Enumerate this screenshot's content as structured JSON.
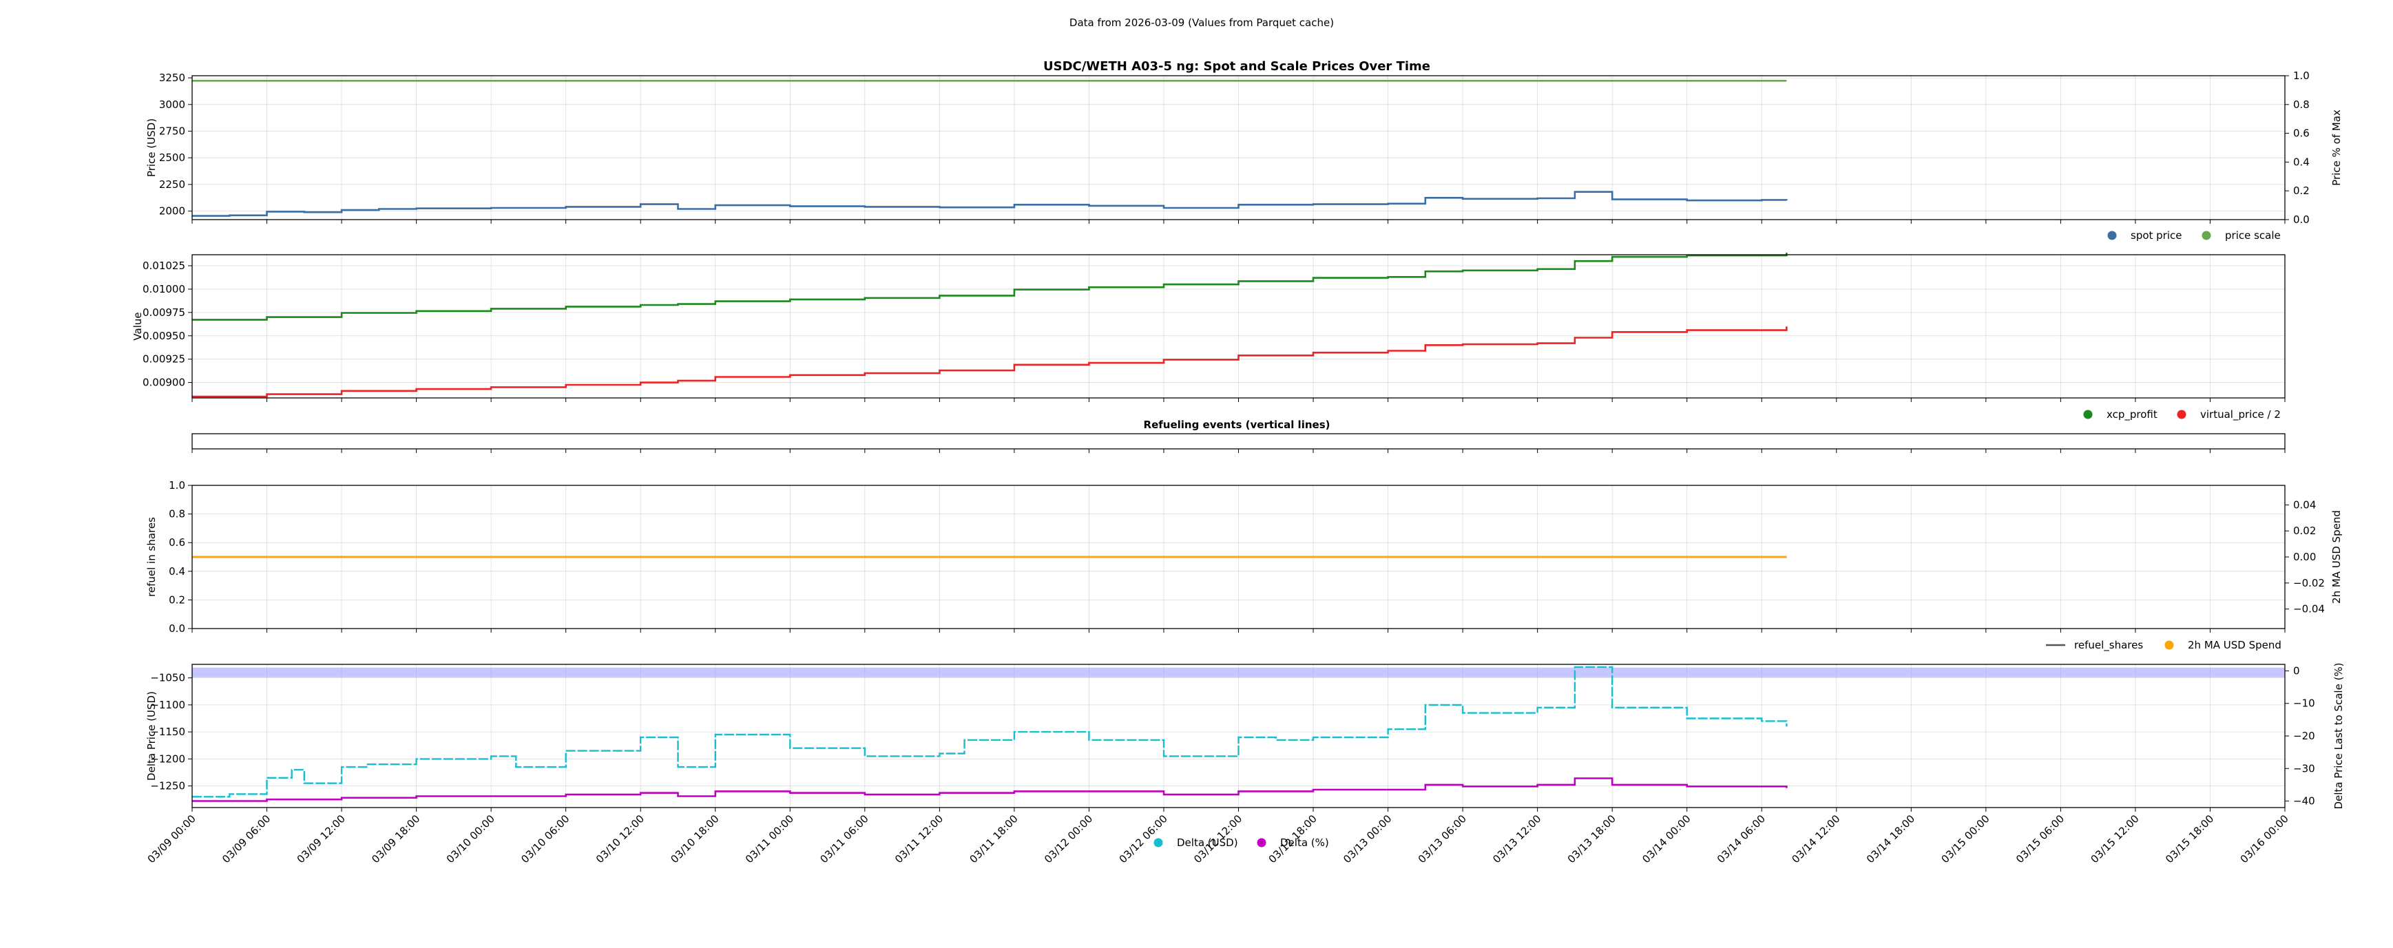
{
  "supertitle": "Data from 2026-03-09 (Values from Parquet cache)",
  "x_axis": {
    "type": "datetime",
    "range": [
      "2026-03-09 00:00",
      "2026-03-16 00:00"
    ],
    "tick_labels": [
      "03/09 00:00",
      "03/09 06:00",
      "03/09 12:00",
      "03/09 18:00",
      "03/10 00:00",
      "03/10 06:00",
      "03/10 12:00",
      "03/10 18:00",
      "03/11 00:00",
      "03/11 06:00",
      "03/11 12:00",
      "03/11 18:00",
      "03/12 00:00",
      "03/12 06:00",
      "03/12 12:00",
      "03/12 18:00",
      "03/13 00:00",
      "03/13 06:00",
      "03/13 12:00",
      "03/13 18:00",
      "03/14 00:00",
      "03/14 06:00",
      "03/14 12:00",
      "03/14 18:00",
      "03/15 00:00",
      "03/15 06:00",
      "03/15 12:00",
      "03/15 18:00",
      "03/16 00:00"
    ],
    "data_end": "2026-03-14 08:00"
  },
  "colors": {
    "spot_price": "#3a6ea5",
    "price_scale": "#6aa84f",
    "xcp_profit": "#1a8a1a",
    "virtual_price": "#ee2222",
    "refuel_shares": "#555555",
    "ma_spend": "#ffa500",
    "delta_usd": "#17becf",
    "delta_pct": "#bf00bf",
    "band": "#9999ff"
  },
  "chart_data": [
    {
      "type": "line",
      "title": "USDC/WETH A03-5 ng: Spot and Scale Prices Over Time",
      "ylabel": "Price (USD)",
      "ylim": [
        1920,
        3270
      ],
      "yticks": [
        "2000",
        "2250",
        "2500",
        "2750",
        "3000",
        "3250"
      ],
      "y2label": "Price % of Max",
      "y2lim": [
        0,
        1
      ],
      "y2ticks": [
        "0.0",
        "0.2",
        "0.4",
        "0.6",
        "0.8",
        "1.0"
      ],
      "legend": [
        "spot price",
        "price scale"
      ],
      "legend_placement": "below-right",
      "grid": true,
      "series": [
        {
          "name": "spot price",
          "points": [
            [
              "03/09 00:00",
              1955
            ],
            [
              "03/09 03:00",
              1960
            ],
            [
              "03/09 06:00",
              1995
            ],
            [
              "03/09 09:00",
              1990
            ],
            [
              "03/09 12:00",
              2010
            ],
            [
              "03/09 15:00",
              2020
            ],
            [
              "03/09 18:00",
              2025
            ],
            [
              "03/10 00:00",
              2030
            ],
            [
              "03/10 06:00",
              2040
            ],
            [
              "03/10 12:00",
              2065
            ],
            [
              "03/10 15:00",
              2020
            ],
            [
              "03/10 18:00",
              2055
            ],
            [
              "03/11 00:00",
              2045
            ],
            [
              "03/11 06:00",
              2040
            ],
            [
              "03/11 12:00",
              2035
            ],
            [
              "03/11 18:00",
              2060
            ],
            [
              "03/12 00:00",
              2050
            ],
            [
              "03/12 06:00",
              2030
            ],
            [
              "03/12 12:00",
              2060
            ],
            [
              "03/12 18:00",
              2065
            ],
            [
              "03/13 00:00",
              2070
            ],
            [
              "03/13 03:00",
              2125
            ],
            [
              "03/13 06:00",
              2115
            ],
            [
              "03/13 12:00",
              2120
            ],
            [
              "03/13 15:00",
              2180
            ],
            [
              "03/13 18:00",
              2110
            ],
            [
              "03/14 00:00",
              2100
            ],
            [
              "03/14 06:00",
              2105
            ],
            [
              "03/14 08:00",
              2100
            ]
          ]
        },
        {
          "name": "price scale",
          "axis": "right",
          "points": [
            [
              "03/09 00:00",
              0.965
            ],
            [
              "03/14 08:00",
              0.965
            ]
          ]
        }
      ]
    },
    {
      "type": "line",
      "title": "",
      "ylabel": "Value",
      "ylim": [
        0.008835,
        0.010368
      ],
      "yticks": [
        "0.00900",
        "0.00925",
        "0.00950",
        "0.00975",
        "0.01000",
        "0.01025"
      ],
      "legend": [
        "xcp_profit",
        "virtual_price / 2"
      ],
      "legend_placement": "below-right",
      "grid": true,
      "series": [
        {
          "name": "xcp_profit",
          "points": [
            [
              "03/09 00:00",
              0.009672
            ],
            [
              "03/09 06:00",
              0.0097
            ],
            [
              "03/09 12:00",
              0.009745
            ],
            [
              "03/09 18:00",
              0.009765
            ],
            [
              "03/10 00:00",
              0.00979
            ],
            [
              "03/10 06:00",
              0.009812
            ],
            [
              "03/10 12:00",
              0.00983
            ],
            [
              "03/10 15:00",
              0.00984
            ],
            [
              "03/10 18:00",
              0.00987
            ],
            [
              "03/11 00:00",
              0.00989
            ],
            [
              "03/11 06:00",
              0.009905
            ],
            [
              "03/11 12:00",
              0.00993
            ],
            [
              "03/11 18:00",
              0.009995
            ],
            [
              "03/12 00:00",
              0.01002
            ],
            [
              "03/12 06:00",
              0.01005
            ],
            [
              "03/12 12:00",
              0.010085
            ],
            [
              "03/12 18:00",
              0.01012
            ],
            [
              "03/13 00:00",
              0.01013
            ],
            [
              "03/13 03:00",
              0.01019
            ],
            [
              "03/13 06:00",
              0.0102
            ],
            [
              "03/13 12:00",
              0.010215
            ],
            [
              "03/13 15:00",
              0.0103
            ],
            [
              "03/13 18:00",
              0.010345
            ],
            [
              "03/14 00:00",
              0.01036
            ],
            [
              "03/14 08:00",
              0.01039
            ]
          ]
        },
        {
          "name": "virtual_price / 2",
          "points": [
            [
              "03/09 00:00",
              0.00885
            ],
            [
              "03/09 06:00",
              0.008875
            ],
            [
              "03/09 12:00",
              0.00891
            ],
            [
              "03/09 18:00",
              0.00893
            ],
            [
              "03/10 00:00",
              0.00895
            ],
            [
              "03/10 06:00",
              0.008975
            ],
            [
              "03/10 12:00",
              0.009
            ],
            [
              "03/10 15:00",
              0.00902
            ],
            [
              "03/10 18:00",
              0.00906
            ],
            [
              "03/11 00:00",
              0.00908
            ],
            [
              "03/11 06:00",
              0.0091
            ],
            [
              "03/11 12:00",
              0.00913
            ],
            [
              "03/11 18:00",
              0.00919
            ],
            [
              "03/12 00:00",
              0.00921
            ],
            [
              "03/12 06:00",
              0.009245
            ],
            [
              "03/12 12:00",
              0.00929
            ],
            [
              "03/12 18:00",
              0.00932
            ],
            [
              "03/13 00:00",
              0.00934
            ],
            [
              "03/13 03:00",
              0.0094
            ],
            [
              "03/13 06:00",
              0.00941
            ],
            [
              "03/13 12:00",
              0.00942
            ],
            [
              "03/13 15:00",
              0.00948
            ],
            [
              "03/13 18:00",
              0.00954
            ],
            [
              "03/14 00:00",
              0.00956
            ],
            [
              "03/14 08:00",
              0.0096
            ]
          ]
        }
      ]
    },
    {
      "type": "line",
      "title": "Refueling events (vertical lines)",
      "series": []
    },
    {
      "type": "line",
      "title": "",
      "ylabel": "refuel in shares",
      "ylim": [
        0,
        1
      ],
      "yticks": [
        "0.0",
        "0.2",
        "0.4",
        "0.6",
        "0.8",
        "1.0"
      ],
      "y2label": "2h MA USD Spend",
      "y2lim": [
        -0.055,
        0.055
      ],
      "y2ticks": [
        "−0.04",
        "−0.02",
        "0.00",
        "0.02",
        "0.04"
      ],
      "legend": [
        "refuel_shares",
        "2h MA USD Spend"
      ],
      "legend_placement": "below-right",
      "grid": true,
      "series": [
        {
          "name": "refuel_shares",
          "points": [
            [
              "03/09 00:00",
              0.5
            ],
            [
              "03/14 08:00",
              0.5
            ]
          ]
        },
        {
          "name": "2h MA USD Spend",
          "axis": "right",
          "points": [
            [
              "03/09 00:00",
              0.0
            ],
            [
              "03/14 08:00",
              0.0
            ]
          ]
        }
      ]
    },
    {
      "type": "line",
      "title": "",
      "ylabel": "Delta Price (USD)",
      "ylim": [
        -1290,
        -1025
      ],
      "yticks": [
        "−1250",
        "−1200",
        "−1150",
        "−1100",
        "−1050"
      ],
      "y2label": "Delta Price Last to Scale (%)",
      "y2lim": [
        -42,
        2
      ],
      "y2ticks": [
        "−40",
        "−30",
        "−20",
        "−10",
        "0"
      ],
      "legend": [
        "Delta (USD)",
        "Delta (%)"
      ],
      "legend_placement": "bottom-center",
      "grid": true,
      "band": {
        "axis": "right",
        "from": -2,
        "to": 1
      },
      "series": [
        {
          "name": "Delta (USD)",
          "points": [
            [
              "03/09 00:00",
              -1270
            ],
            [
              "03/09 03:00",
              -1265
            ],
            [
              "03/09 06:00",
              -1235
            ],
            [
              "03/09 08:00",
              -1220
            ],
            [
              "03/09 09:00",
              -1245
            ],
            [
              "03/09 12:00",
              -1215
            ],
            [
              "03/09 14:00",
              -1210
            ],
            [
              "03/09 18:00",
              -1200
            ],
            [
              "03/10 00:00",
              -1195
            ],
            [
              "03/10 02:00",
              -1215
            ],
            [
              "03/10 06:00",
              -1185
            ],
            [
              "03/10 12:00",
              -1160
            ],
            [
              "03/10 15:00",
              -1215
            ],
            [
              "03/10 18:00",
              -1155
            ],
            [
              "03/11 00:00",
              -1180
            ],
            [
              "03/11 06:00",
              -1195
            ],
            [
              "03/11 12:00",
              -1190
            ],
            [
              "03/11 14:00",
              -1165
            ],
            [
              "03/11 18:00",
              -1150
            ],
            [
              "03/12 00:00",
              -1165
            ],
            [
              "03/12 06:00",
              -1195
            ],
            [
              "03/12 12:00",
              -1160
            ],
            [
              "03/12 15:00",
              -1165
            ],
            [
              "03/12 18:00",
              -1160
            ],
            [
              "03/13 00:00",
              -1145
            ],
            [
              "03/13 03:00",
              -1100
            ],
            [
              "03/13 06:00",
              -1115
            ],
            [
              "03/13 12:00",
              -1105
            ],
            [
              "03/13 15:00",
              -1030
            ],
            [
              "03/13 18:00",
              -1105
            ],
            [
              "03/14 00:00",
              -1125
            ],
            [
              "03/14 06:00",
              -1130
            ],
            [
              "03/14 08:00",
              -1140
            ]
          ]
        },
        {
          "name": "Delta (%)",
          "axis": "right",
          "points": [
            [
              "03/09 00:00",
              -40
            ],
            [
              "03/09 06:00",
              -39.5
            ],
            [
              "03/09 12:00",
              -39
            ],
            [
              "03/09 18:00",
              -38.5
            ],
            [
              "03/10 00:00",
              -38.5
            ],
            [
              "03/10 06:00",
              -38
            ],
            [
              "03/10 12:00",
              -37.5
            ],
            [
              "03/10 15:00",
              -38.5
            ],
            [
              "03/10 18:00",
              -37
            ],
            [
              "03/11 00:00",
              -37.5
            ],
            [
              "03/11 06:00",
              -38
            ],
            [
              "03/11 12:00",
              -37.5
            ],
            [
              "03/11 18:00",
              -37
            ],
            [
              "03/12 00:00",
              -37
            ],
            [
              "03/12 06:00",
              -38
            ],
            [
              "03/12 12:00",
              -37
            ],
            [
              "03/12 18:00",
              -36.5
            ],
            [
              "03/13 00:00",
              -36.5
            ],
            [
              "03/13 03:00",
              -35
            ],
            [
              "03/13 06:00",
              -35.5
            ],
            [
              "03/13 12:00",
              -35
            ],
            [
              "03/13 15:00",
              -33
            ],
            [
              "03/13 18:00",
              -35
            ],
            [
              "03/14 00:00",
              -35.5
            ],
            [
              "03/14 06:00",
              -35.5
            ],
            [
              "03/14 08:00",
              -36
            ]
          ]
        }
      ]
    }
  ]
}
